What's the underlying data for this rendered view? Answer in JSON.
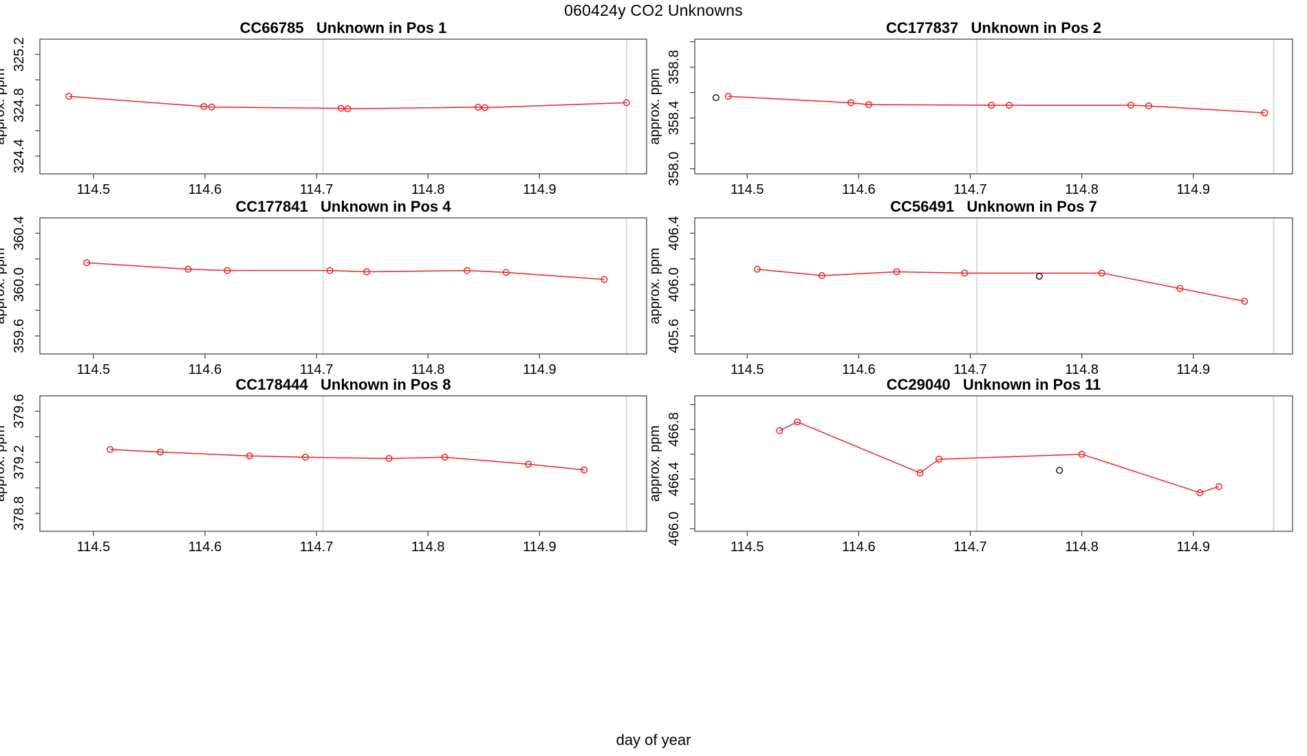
{
  "title": "060424y  CO2 Unknowns",
  "xlabel": "day of year",
  "chart_data": {
    "type": "line",
    "layout": "small-multiples grid, 3 rows x 2 columns, bottom quarter of figure empty",
    "shared_x_ticks": [
      114.5,
      114.6,
      114.7,
      114.8,
      114.9
    ],
    "colors": {
      "series": "#f02020",
      "outlier_point": "#1a1a1a",
      "reference_line": "#d8d8d8",
      "box": "#3a3a3a"
    },
    "panels": [
      {
        "sample_id": "CC66785",
        "position_label": "Unknown in Pos 1",
        "ylabel": "approx. ppm",
        "xlim": [
          114.452,
          114.996
        ],
        "ylim": [
          324.26,
          325.32
        ],
        "x_ticks": [
          114.5,
          114.6,
          114.7,
          114.8,
          114.9
        ],
        "y_labeled_ticks": [
          324.4,
          324.8,
          325.2
        ],
        "y_tick_step": 0.2,
        "reflines_x": [
          114.706,
          114.978
        ],
        "series": [
          {
            "name": "run",
            "color": "#f02020",
            "connected": true,
            "points": [
              [
                114.478,
                324.87
              ],
              [
                114.599,
                324.79
              ],
              [
                114.606,
                324.786
              ],
              [
                114.722,
                324.776
              ],
              [
                114.728,
                324.772
              ],
              [
                114.845,
                324.785
              ],
              [
                114.851,
                324.781
              ],
              [
                114.978,
                324.82
              ]
            ]
          }
        ]
      },
      {
        "sample_id": "CC177837",
        "position_label": "Unknown in Pos 2",
        "ylabel": "approx. ppm",
        "xlim": [
          114.453,
          114.989
        ],
        "ylim": [
          357.96,
          359.02
        ],
        "x_ticks": [
          114.5,
          114.6,
          114.7,
          114.8,
          114.9
        ],
        "y_labeled_ticks": [
          358.0,
          358.4,
          358.8
        ],
        "y_tick_step": 0.2,
        "reflines_x": [
          114.706,
          114.972
        ],
        "series": [
          {
            "name": "run",
            "color": "#f02020",
            "connected": true,
            "points": [
              [
                114.483,
                358.57
              ],
              [
                114.593,
                358.52
              ],
              [
                114.609,
                358.505
              ],
              [
                114.719,
                358.5
              ],
              [
                114.735,
                358.5
              ],
              [
                114.844,
                358.5
              ],
              [
                114.86,
                358.495
              ],
              [
                114.964,
                358.44
              ]
            ]
          },
          {
            "name": "flagged",
            "color": "#1a1a1a",
            "connected": false,
            "points": [
              [
                114.472,
                358.56
              ]
            ]
          }
        ]
      },
      {
        "sample_id": "CC177841",
        "position_label": "Unknown in Pos 4",
        "ylabel": "approx. ppm",
        "xlim": [
          114.452,
          114.996
        ],
        "ylim": [
          359.46,
          360.52
        ],
        "x_ticks": [
          114.5,
          114.6,
          114.7,
          114.8,
          114.9
        ],
        "y_labeled_ticks": [
          359.6,
          360.0,
          360.4
        ],
        "y_tick_step": 0.2,
        "reflines_x": [
          114.706,
          114.978
        ],
        "series": [
          {
            "name": "run",
            "color": "#f02020",
            "connected": true,
            "points": [
              [
                114.494,
                360.17
              ],
              [
                114.585,
                360.12
              ],
              [
                114.62,
                360.11
              ],
              [
                114.712,
                360.11
              ],
              [
                114.745,
                360.1
              ],
              [
                114.835,
                360.11
              ],
              [
                114.87,
                360.095
              ],
              [
                114.958,
                360.04
              ]
            ]
          }
        ]
      },
      {
        "sample_id": "CC56491",
        "position_label": "Unknown in Pos 7",
        "ylabel": "approx. ppm",
        "xlim": [
          114.453,
          114.989
        ],
        "ylim": [
          405.46,
          406.52
        ],
        "x_ticks": [
          114.5,
          114.6,
          114.7,
          114.8,
          114.9
        ],
        "y_labeled_ticks": [
          405.6,
          406.0,
          406.4
        ],
        "y_tick_step": 0.2,
        "reflines_x": [
          114.706,
          114.972
        ],
        "series": [
          {
            "name": "run",
            "color": "#f02020",
            "connected": true,
            "points": [
              [
                114.509,
                406.12
              ],
              [
                114.567,
                406.07
              ],
              [
                114.634,
                406.1
              ],
              [
                114.695,
                406.09
              ],
              [
                114.818,
                406.09
              ],
              [
                114.888,
                405.97
              ],
              [
                114.946,
                405.87
              ]
            ]
          },
          {
            "name": "flagged",
            "color": "#1a1a1a",
            "connected": false,
            "points": [
              [
                114.762,
                406.065
              ]
            ]
          }
        ]
      },
      {
        "sample_id": "CC178444",
        "position_label": "Unknown in Pos 8",
        "ylabel": "approx. ppm",
        "xlim": [
          114.452,
          114.996
        ],
        "ylim": [
          378.66,
          379.72
        ],
        "x_ticks": [
          114.5,
          114.6,
          114.7,
          114.8,
          114.9
        ],
        "y_labeled_ticks": [
          378.8,
          379.2,
          379.6
        ],
        "y_tick_step": 0.2,
        "reflines_x": [
          114.706,
          114.978
        ],
        "series": [
          {
            "name": "run",
            "color": "#f02020",
            "connected": true,
            "points": [
              [
                114.515,
                379.3
              ],
              [
                114.56,
                379.28
              ],
              [
                114.64,
                379.25
              ],
              [
                114.69,
                379.24
              ],
              [
                114.765,
                379.23
              ],
              [
                114.815,
                379.24
              ],
              [
                114.89,
                379.185
              ],
              [
                114.94,
                379.14
              ]
            ]
          }
        ]
      },
      {
        "sample_id": "CC29040",
        "position_label": "Unknown in Pos 11",
        "ylabel": "approx. ppm",
        "xlim": [
          114.453,
          114.989
        ],
        "ylim": [
          465.98,
          467.07
        ],
        "x_ticks": [
          114.5,
          114.6,
          114.7,
          114.8,
          114.9
        ],
        "y_labeled_ticks": [
          466.0,
          466.4,
          466.8
        ],
        "y_tick_step": 0.2,
        "reflines_x": [
          114.706,
          114.972
        ],
        "series": [
          {
            "name": "run",
            "color": "#f02020",
            "connected": true,
            "points": [
              [
                114.529,
                466.79
              ],
              [
                114.545,
                466.86
              ],
              [
                114.655,
                466.45
              ],
              [
                114.672,
                466.56
              ],
              [
                114.8,
                466.6
              ],
              [
                114.906,
                466.29
              ],
              [
                114.923,
                466.34
              ]
            ]
          },
          {
            "name": "flagged",
            "color": "#1a1a1a",
            "connected": false,
            "points": [
              [
                114.78,
                466.47
              ]
            ]
          }
        ]
      }
    ]
  }
}
